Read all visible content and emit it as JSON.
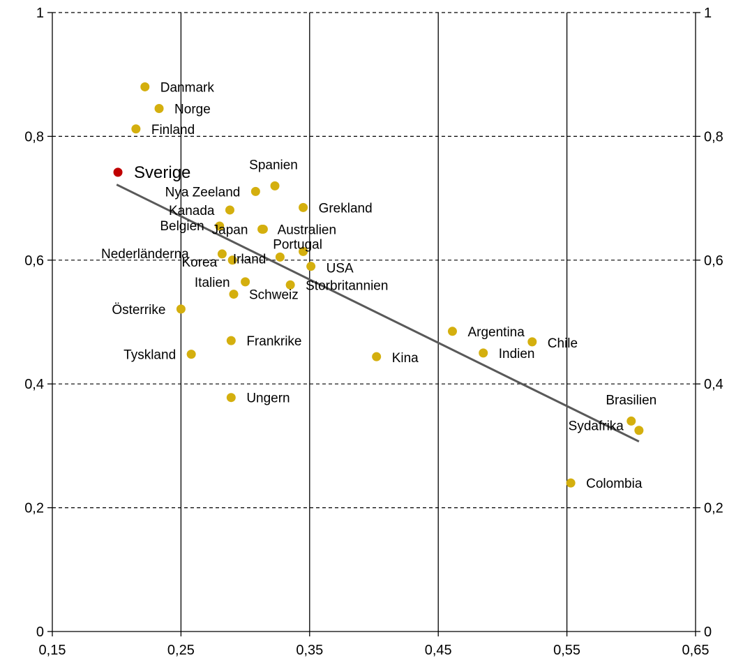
{
  "chart_data": {
    "type": "scatter",
    "title": "",
    "xlabel": "",
    "ylabel": "",
    "xlim": [
      0.15,
      0.65
    ],
    "ylim": [
      0,
      1
    ],
    "x_ticks": [
      {
        "value": 0.15,
        "label": "0,15"
      },
      {
        "value": 0.25,
        "label": "0,25"
      },
      {
        "value": 0.35,
        "label": "0,35"
      },
      {
        "value": 0.45,
        "label": "0,45"
      },
      {
        "value": 0.55,
        "label": "0,55"
      },
      {
        "value": 0.65,
        "label": "0,65"
      }
    ],
    "y_ticks": [
      {
        "value": 0,
        "label": "0"
      },
      {
        "value": 0.2,
        "label": "0,2"
      },
      {
        "value": 0.4,
        "label": "0,4"
      },
      {
        "value": 0.6,
        "label": "0,6"
      },
      {
        "value": 0.8,
        "label": "0,8"
      },
      {
        "value": 1,
        "label": "1"
      }
    ],
    "grid": {
      "x": "solid",
      "y": "dashed"
    },
    "secondary_y_axis": true,
    "point_color": "#D4AF0E",
    "highlight_color": "#C00000",
    "trend_color": "#595959",
    "trendline": {
      "x": [
        0.2,
        0.606
      ],
      "y": [
        0.722,
        0.307
      ]
    },
    "points": [
      {
        "name": "Sverige",
        "x": 0.201,
        "y": 0.742,
        "highlight": true
      },
      {
        "name": "Danmark",
        "x": 0.222,
        "y": 0.88
      },
      {
        "name": "Norge",
        "x": 0.233,
        "y": 0.845
      },
      {
        "name": "Finland",
        "x": 0.215,
        "y": 0.812
      },
      {
        "name": "Spanien",
        "x": 0.323,
        "y": 0.72
      },
      {
        "name": "Nya Zeeland",
        "x": 0.308,
        "y": 0.711
      },
      {
        "name": "Grekland",
        "x": 0.345,
        "y": 0.685
      },
      {
        "name": "Kanada",
        "x": 0.288,
        "y": 0.681
      },
      {
        "name": "Belgien",
        "x": 0.28,
        "y": 0.655
      },
      {
        "name": "Japan",
        "x": 0.314,
        "y": 0.65
      },
      {
        "name": "Australien",
        "x": 0.313,
        "y": 0.65
      },
      {
        "name": "Nederländerna",
        "x": 0.282,
        "y": 0.61
      },
      {
        "name": "Portugal",
        "x": 0.345,
        "y": 0.614
      },
      {
        "name": "Irland",
        "x": 0.327,
        "y": 0.605
      },
      {
        "name": "Korea",
        "x": 0.29,
        "y": 0.6
      },
      {
        "name": "USA",
        "x": 0.351,
        "y": 0.59
      },
      {
        "name": "Italien",
        "x": 0.3,
        "y": 0.565
      },
      {
        "name": "Storbritannien",
        "x": 0.335,
        "y": 0.56
      },
      {
        "name": "Schweiz",
        "x": 0.291,
        "y": 0.545
      },
      {
        "name": "Österrike",
        "x": 0.25,
        "y": 0.521
      },
      {
        "name": "Argentina",
        "x": 0.461,
        "y": 0.485
      },
      {
        "name": "Frankrike",
        "x": 0.289,
        "y": 0.47
      },
      {
        "name": "Chile",
        "x": 0.523,
        "y": 0.468
      },
      {
        "name": "Indien",
        "x": 0.485,
        "y": 0.45
      },
      {
        "name": "Tyskland",
        "x": 0.258,
        "y": 0.448
      },
      {
        "name": "Kina",
        "x": 0.402,
        "y": 0.444
      },
      {
        "name": "Ungern",
        "x": 0.289,
        "y": 0.378
      },
      {
        "name": "Brasilien",
        "x": 0.6,
        "y": 0.34
      },
      {
        "name": "Sydafrika",
        "x": 0.606,
        "y": 0.325
      },
      {
        "name": "Colombia",
        "x": 0.553,
        "y": 0.24
      }
    ]
  }
}
